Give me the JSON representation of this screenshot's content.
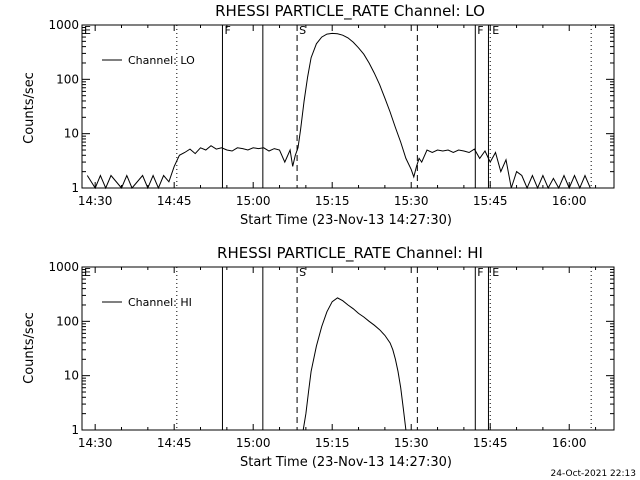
{
  "timestamp": "24-Oct-2021 22:13",
  "chart_data": [
    {
      "type": "line",
      "title": "RHESSI PARTICLE_RATE Channel: LO",
      "xlabel": "Start Time (23-Nov-13 14:27:30)",
      "ylabel": "Counts/sec",
      "y_scale": "log",
      "xlim": [
        "14:27:30",
        "16:08:30"
      ],
      "ylim": [
        1,
        1000
      ],
      "x_ticks": [
        "14:30",
        "14:45",
        "15:00",
        "15:15",
        "15:30",
        "15:45",
        "16:00"
      ],
      "y_ticks": [
        "1",
        "10",
        "100",
        "1000"
      ],
      "legend": {
        "placement": "top-left",
        "entries": [
          "Channel: LO"
        ]
      },
      "annotations": [
        {
          "time": "14:27:30",
          "label": "E",
          "style": "dotted"
        },
        {
          "time": "14:45:30",
          "label": "",
          "style": "dotted"
        },
        {
          "time": "14:54:10",
          "label": "F",
          "style": "solid"
        },
        {
          "time": "15:01:50",
          "label": "",
          "style": "solid"
        },
        {
          "time": "15:08:20",
          "label": "S",
          "style": "dashed"
        },
        {
          "time": "15:31:10",
          "label": "",
          "style": "dashed"
        },
        {
          "time": "15:42:10",
          "label": "F",
          "style": "solid"
        },
        {
          "time": "15:44:40",
          "label": "",
          "style": "solid"
        },
        {
          "time": "15:45:00",
          "label": "E",
          "style": "dotted"
        },
        {
          "time": "16:04:10",
          "label": "",
          "style": "dotted"
        }
      ],
      "series": [
        {
          "name": "Channel: LO",
          "x": [
            "14:28:30",
            "14:30:00",
            "14:31:00",
            "14:32:00",
            "14:33:00",
            "14:35:00",
            "14:36:00",
            "14:37:00",
            "14:39:00",
            "14:40:00",
            "14:41:00",
            "14:42:00",
            "14:43:00",
            "14:44:00",
            "14:45:00",
            "14:46:00",
            "14:47:00",
            "14:48:00",
            "14:49:00",
            "14:50:00",
            "14:51:00",
            "14:52:00",
            "14:53:00",
            "14:54:00",
            "14:55:00",
            "14:56:00",
            "14:57:00",
            "14:58:00",
            "14:59:00",
            "15:00:00",
            "15:01:00",
            "15:02:00",
            "15:03:00",
            "15:04:00",
            "15:05:00",
            "15:06:00",
            "15:07:00",
            "15:07:30",
            "15:08:00",
            "15:08:30",
            "15:09:00",
            "15:09:40",
            "15:10:20",
            "15:11:00",
            "15:12:00",
            "15:13:00",
            "15:14:00",
            "15:15:00",
            "15:16:00",
            "15:17:00",
            "15:18:00",
            "15:19:00",
            "15:20:00",
            "15:21:00",
            "15:22:00",
            "15:23:00",
            "15:24:00",
            "15:25:00",
            "15:26:00",
            "15:27:00",
            "15:28:00",
            "15:29:00",
            "15:30:00",
            "15:30:30",
            "15:31:00",
            "15:31:30",
            "15:32:00",
            "15:33:00",
            "15:34:00",
            "15:35:00",
            "15:36:00",
            "15:37:00",
            "15:38:00",
            "15:39:00",
            "15:40:00",
            "15:41:00",
            "15:42:00",
            "15:43:00",
            "15:44:00",
            "15:45:00",
            "15:46:00",
            "15:47:00",
            "15:48:00",
            "15:49:00",
            "15:50:00",
            "15:51:00",
            "15:52:00",
            "15:53:00",
            "15:54:00",
            "15:55:00",
            "15:56:00",
            "15:57:00",
            "15:58:00",
            "15:59:00",
            "16:00:00",
            "16:01:00",
            "16:02:00",
            "16:03:00",
            "16:04:00"
          ],
          "y": [
            1.7,
            1.0,
            1.7,
            1.0,
            1.7,
            1.0,
            1.7,
            1.0,
            1.7,
            1.0,
            1.7,
            1.0,
            1.7,
            1.3,
            2.5,
            4.0,
            4.5,
            5.2,
            4.3,
            5.5,
            5.0,
            6.0,
            5.2,
            5.5,
            5.0,
            4.8,
            5.5,
            5.3,
            5.0,
            5.5,
            5.3,
            5.5,
            4.8,
            5.3,
            5.0,
            3.0,
            5.0,
            2.5,
            4.0,
            5.5,
            12,
            40,
            110,
            250,
            450,
            600,
            680,
            700,
            690,
            650,
            580,
            480,
            380,
            290,
            200,
            130,
            80,
            45,
            25,
            13,
            7,
            3.5,
            2.2,
            1.6,
            2.5,
            3.5,
            3.0,
            5.0,
            4.5,
            5.0,
            4.8,
            5.0,
            4.5,
            5.0,
            4.8,
            4.5,
            5.2,
            3.5,
            4.8,
            3.0,
            4.5,
            2.0,
            3.3,
            1.0,
            2.0,
            1.7,
            1.0,
            1.7,
            1.0,
            1.7,
            1.0,
            1.5,
            1.0,
            1.7,
            1.0,
            1.7,
            1.0,
            1.7,
            1.0
          ]
        }
      ]
    },
    {
      "type": "line",
      "title": "RHESSI PARTICLE_RATE Channel: HI",
      "xlabel": "Start Time (23-Nov-13 14:27:30)",
      "ylabel": "Counts/sec",
      "y_scale": "log",
      "xlim": [
        "14:27:30",
        "16:08:30"
      ],
      "ylim": [
        1,
        1000
      ],
      "x_ticks": [
        "14:30",
        "14:45",
        "15:00",
        "15:15",
        "15:30",
        "15:45",
        "16:00"
      ],
      "y_ticks": [
        "1",
        "10",
        "100",
        "1000"
      ],
      "legend": {
        "placement": "top-left",
        "entries": [
          "Channel: HI"
        ]
      },
      "annotations": [
        {
          "time": "14:27:30",
          "label": "E",
          "style": "dotted"
        },
        {
          "time": "14:45:30",
          "label": "",
          "style": "dotted"
        },
        {
          "time": "14:54:10",
          "label": "",
          "style": "solid"
        },
        {
          "time": "15:01:50",
          "label": "",
          "style": "solid"
        },
        {
          "time": "15:08:20",
          "label": "S",
          "style": "dashed"
        },
        {
          "time": "15:31:10",
          "label": "",
          "style": "dashed"
        },
        {
          "time": "15:42:10",
          "label": "F",
          "style": "solid"
        },
        {
          "time": "15:44:40",
          "label": "",
          "style": "solid"
        },
        {
          "time": "15:45:00",
          "label": "E",
          "style": "dotted"
        },
        {
          "time": "16:04:10",
          "label": "",
          "style": "dotted"
        }
      ],
      "series": [
        {
          "name": "Channel: HI",
          "x": [
            "15:09:30",
            "15:10:00",
            "15:10:30",
            "15:11:00",
            "15:12:00",
            "15:13:00",
            "15:14:00",
            "15:15:00",
            "15:16:00",
            "15:17:00",
            "15:18:00",
            "15:19:00",
            "15:20:00",
            "15:21:00",
            "15:22:00",
            "15:23:00",
            "15:24:00",
            "15:25:00",
            "15:26:00",
            "15:26:30",
            "15:27:00",
            "15:27:30",
            "15:28:00",
            "15:28:30",
            "15:29:00"
          ],
          "y": [
            1.0,
            2.0,
            5.0,
            12,
            35,
            80,
            150,
            230,
            270,
            240,
            200,
            170,
            140,
            120,
            100,
            85,
            70,
            55,
            40,
            30,
            20,
            12,
            6,
            2.5,
            1.0
          ]
        }
      ]
    }
  ]
}
